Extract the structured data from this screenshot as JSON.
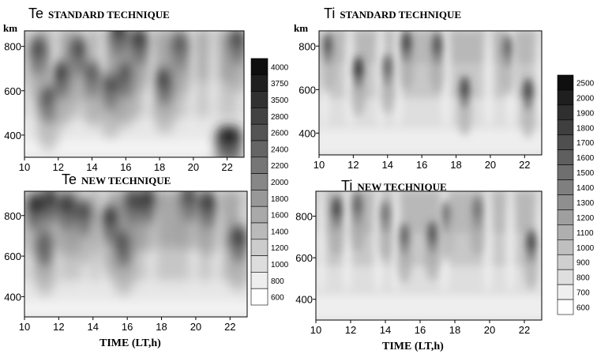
{
  "chart_data": [
    {
      "type": "heatmap",
      "variable": "Te",
      "title": "STANDARD TECHNIQUE",
      "ylabel": "km",
      "xlabel": "",
      "xlim": [
        10,
        23
      ],
      "ylim": [
        300,
        870
      ],
      "x_ticks": [
        10,
        12,
        14,
        16,
        18,
        20,
        22
      ],
      "y_ticks": [
        400,
        600,
        800
      ],
      "colorbar": [
        4000,
        3750,
        3500,
        2800,
        2600,
        2400,
        2200,
        2000,
        1800,
        1600,
        1400,
        1200,
        1000,
        800,
        600
      ],
      "dark_blobs": [
        {
          "x": 10.8,
          "y": 760,
          "value": 2800
        },
        {
          "x": 11.4,
          "y": 540,
          "value": 2800
        },
        {
          "x": 12.2,
          "y": 650,
          "value": 3500
        },
        {
          "x": 13.2,
          "y": 760,
          "value": 2800
        },
        {
          "x": 14.0,
          "y": 650,
          "value": 2600
        },
        {
          "x": 15.1,
          "y": 600,
          "value": 2800
        },
        {
          "x": 15.6,
          "y": 840,
          "value": 3500
        },
        {
          "x": 16.0,
          "y": 650,
          "value": 2800
        },
        {
          "x": 16.8,
          "y": 800,
          "value": 3500
        },
        {
          "x": 18.3,
          "y": 620,
          "value": 3500
        },
        {
          "x": 19.2,
          "y": 780,
          "value": 2600
        },
        {
          "x": 21.8,
          "y": 360,
          "value": 3750
        },
        {
          "x": 22.4,
          "y": 360,
          "value": 3750
        },
        {
          "x": 22.6,
          "y": 800,
          "value": 2800
        }
      ]
    },
    {
      "type": "heatmap",
      "variable": "Te",
      "title": "NEW TECHNIQUE",
      "xlabel": "TIME (LT,h)",
      "ylabel": "",
      "xlim": [
        10,
        23
      ],
      "ylim": [
        300,
        920
      ],
      "x_ticks": [
        10,
        12,
        14,
        16,
        18,
        20,
        22
      ],
      "y_ticks": [
        400,
        600,
        800
      ],
      "colorbar": [
        4000,
        3750,
        3500,
        2800,
        2600,
        2400,
        2200,
        2000,
        1800,
        1600,
        1400,
        1200,
        1000,
        800,
        600
      ],
      "dark_blobs": [
        {
          "x": 10.6,
          "y": 820,
          "value": 3750
        },
        {
          "x": 11.2,
          "y": 640,
          "value": 3750
        },
        {
          "x": 11.5,
          "y": 850,
          "value": 3500
        },
        {
          "x": 12.5,
          "y": 820,
          "value": 3500
        },
        {
          "x": 13.5,
          "y": 790,
          "value": 2800
        },
        {
          "x": 15.0,
          "y": 760,
          "value": 3500
        },
        {
          "x": 15.8,
          "y": 640,
          "value": 3750
        },
        {
          "x": 16.3,
          "y": 840,
          "value": 2800
        },
        {
          "x": 17.2,
          "y": 850,
          "value": 3500
        },
        {
          "x": 19.6,
          "y": 860,
          "value": 2800
        },
        {
          "x": 20.7,
          "y": 830,
          "value": 3500
        },
        {
          "x": 22.5,
          "y": 660,
          "value": 3500
        }
      ]
    },
    {
      "type": "heatmap",
      "variable": "Ti",
      "title": "STANDARD TECHNIQUE",
      "ylabel": "km",
      "xlabel": "",
      "xlim": [
        10,
        23
      ],
      "ylim": [
        300,
        870
      ],
      "x_ticks": [
        10,
        12,
        14,
        16,
        18,
        20,
        22
      ],
      "y_ticks": [
        400,
        600,
        800
      ],
      "colorbar": [
        2500,
        2000,
        1900,
        1800,
        1700,
        1600,
        1500,
        1400,
        1300,
        1200,
        1100,
        1000,
        900,
        800,
        700,
        600
      ],
      "dark_blobs": [
        {
          "x": 10.5,
          "y": 790,
          "value": 1700
        },
        {
          "x": 12.3,
          "y": 680,
          "value": 1900
        },
        {
          "x": 14.0,
          "y": 690,
          "value": 1600
        },
        {
          "x": 15.1,
          "y": 800,
          "value": 1800
        },
        {
          "x": 16.9,
          "y": 790,
          "value": 1700
        },
        {
          "x": 18.5,
          "y": 590,
          "value": 1800
        },
        {
          "x": 21.0,
          "y": 780,
          "value": 1600
        },
        {
          "x": 22.2,
          "y": 580,
          "value": 1800
        }
      ]
    },
    {
      "type": "heatmap",
      "variable": "Ti",
      "title": "NEW TECHNIQUE",
      "xlabel": "TIME (LT,h)",
      "ylabel": "",
      "xlim": [
        10,
        23
      ],
      "ylim": [
        300,
        920
      ],
      "x_ticks": [
        10,
        12,
        14,
        16,
        18,
        20,
        22
      ],
      "y_ticks": [
        400,
        600,
        800
      ],
      "colorbar": [
        2500,
        2000,
        1900,
        1800,
        1700,
        1600,
        1500,
        1400,
        1300,
        1200,
        1100,
        1000,
        900,
        800,
        700,
        600
      ],
      "dark_blobs": [
        {
          "x": 11.2,
          "y": 820,
          "value": 1800
        },
        {
          "x": 12.4,
          "y": 840,
          "value": 1600
        },
        {
          "x": 14.0,
          "y": 800,
          "value": 1500
        },
        {
          "x": 15.1,
          "y": 690,
          "value": 1600
        },
        {
          "x": 16.7,
          "y": 700,
          "value": 1700
        },
        {
          "x": 17.5,
          "y": 800,
          "value": 1500
        },
        {
          "x": 19.3,
          "y": 820,
          "value": 1500
        },
        {
          "x": 22.4,
          "y": 660,
          "value": 1800
        }
      ]
    }
  ]
}
